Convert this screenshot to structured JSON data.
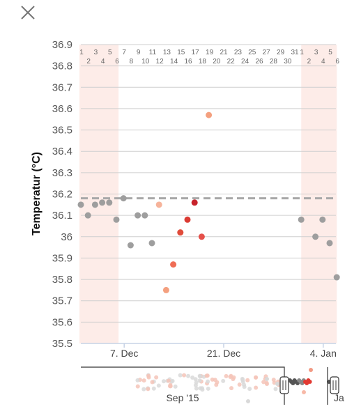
{
  "app": {
    "close_icon": "close-icon"
  },
  "chart_data": {
    "type": "scatter",
    "ylabel": "Temperatur (°C)",
    "ylim": [
      35.5,
      36.9
    ],
    "yticks": [
      "35.5",
      "35.6",
      "35.7",
      "35.8",
      "35.9",
      "36",
      "36.1",
      "36.2",
      "36.3",
      "36.4",
      "36.5",
      "36.6",
      "36.7",
      "36.8",
      "36.9"
    ],
    "grid": true,
    "reference_line": 36.18,
    "x_tick_labels": [
      "7. Dec",
      "21. Dec",
      "4. Jan"
    ],
    "x_tick_days": [
      6,
      20,
      34
    ],
    "day_labels_top": [
      "1",
      "3",
      "5",
      "7",
      "9",
      "11",
      "13",
      "15",
      "17",
      "19",
      "21",
      "23",
      "25",
      "27",
      "29",
      "31",
      "1",
      "3",
      "5"
    ],
    "day_labels_top_days": [
      0,
      2,
      4,
      6,
      8,
      10,
      12,
      14,
      16,
      18,
      20,
      22,
      24,
      26,
      28,
      30,
      31,
      33,
      35
    ],
    "day_labels_bottom": [
      "2",
      "4",
      "6",
      "8",
      "10",
      "12",
      "14",
      "16",
      "18",
      "20",
      "22",
      "24",
      "26",
      "28",
      "30",
      "2",
      "4",
      "6"
    ],
    "day_labels_bottom_days": [
      1,
      3,
      5,
      7,
      9,
      11,
      13,
      15,
      17,
      19,
      21,
      23,
      25,
      27,
      29,
      32,
      34,
      36
    ],
    "shaded_periods": [
      [
        0,
        5.5
      ],
      [
        31.2,
        36.2
      ]
    ],
    "points": [
      {
        "day": 0,
        "value": 36.15,
        "color": "#9e9e9e"
      },
      {
        "day": 1,
        "value": 36.1,
        "color": "#9e9e9e"
      },
      {
        "day": 2,
        "value": 36.15,
        "color": "#9e9e9e"
      },
      {
        "day": 3,
        "value": 36.16,
        "color": "#9e9e9e"
      },
      {
        "day": 4,
        "value": 36.16,
        "color": "#9e9e9e"
      },
      {
        "day": 5,
        "value": 36.08,
        "color": "#9e9e9e"
      },
      {
        "day": 6,
        "value": 36.18,
        "color": "#9e9e9e"
      },
      {
        "day": 7,
        "value": 35.96,
        "color": "#9e9e9e"
      },
      {
        "day": 8,
        "value": 36.1,
        "color": "#9e9e9e"
      },
      {
        "day": 9,
        "value": 36.1,
        "color": "#9e9e9e"
      },
      {
        "day": 10,
        "value": 35.97,
        "color": "#9e9e9e"
      },
      {
        "day": 11,
        "value": 36.15,
        "color": "#f6b39a"
      },
      {
        "day": 12,
        "value": 35.75,
        "color": "#f4a07f"
      },
      {
        "day": 13,
        "value": 35.87,
        "color": "#ef6d55"
      },
      {
        "day": 14,
        "value": 36.02,
        "color": "#e04b3a"
      },
      {
        "day": 15,
        "value": 36.08,
        "color": "#db3b33"
      },
      {
        "day": 16,
        "value": 36.16,
        "color": "#c7232b"
      },
      {
        "day": 17,
        "value": 36.0,
        "color": "#e5504a"
      },
      {
        "day": 18,
        "value": 36.57,
        "color": "#f4a07f"
      },
      {
        "day": 31,
        "value": 36.08,
        "color": "#9e9e9e"
      },
      {
        "day": 33,
        "value": 36.0,
        "color": "#9e9e9e"
      },
      {
        "day": 34,
        "value": 36.08,
        "color": "#9e9e9e"
      },
      {
        "day": 35,
        "value": 35.97,
        "color": "#9e9e9e"
      },
      {
        "day": 36,
        "value": 35.81,
        "color": "#9e9e9e"
      }
    ],
    "navigator": {
      "label": "Sep '15",
      "partial_label": "Ja"
    }
  },
  "colors": {
    "shade": "#fdece8",
    "grid": "#cfcfcf",
    "refline": "#a8a8a8"
  }
}
